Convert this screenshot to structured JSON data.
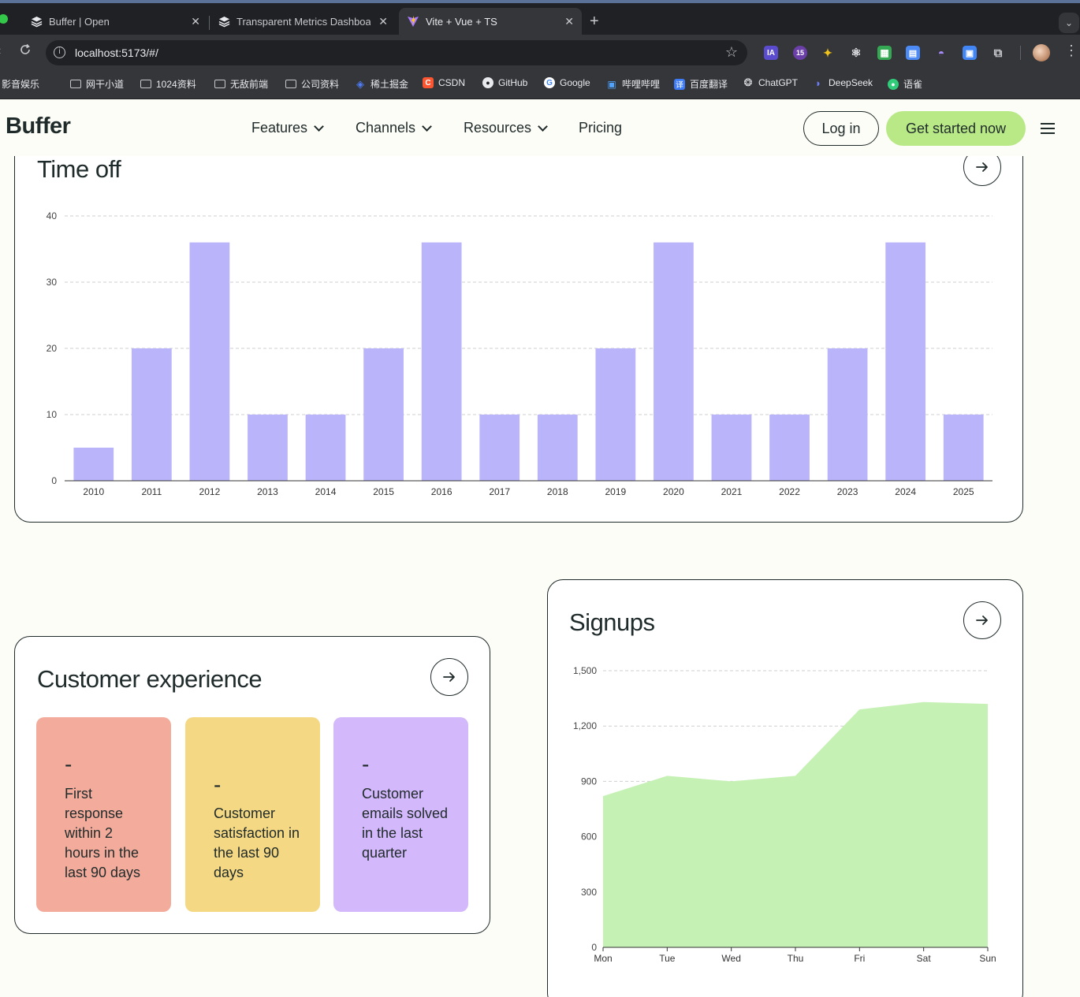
{
  "browser": {
    "tabs": [
      {
        "label": "Buffer | Open",
        "icon": "buffer-icon"
      },
      {
        "label": "Transparent Metrics Dashboa",
        "icon": "buffer-icon"
      },
      {
        "label": "Vite + Vue + TS",
        "icon": "vite-icon"
      }
    ],
    "url": "localhost:5173/#/",
    "extensions": [
      "IA",
      "15"
    ],
    "bookmarks": [
      "影音娱乐",
      "网干小道",
      "1024资料",
      "无敌前端",
      "公司资料",
      "稀土掘金",
      "CSDN",
      "GitHub",
      "Google",
      "哔哩哔哩",
      "百度翻译",
      "ChatGPT",
      "DeepSeek",
      "语雀"
    ]
  },
  "header": {
    "logo": "Buffer",
    "nav": [
      "Features",
      "Channels",
      "Resources",
      "Pricing"
    ],
    "login": "Log in",
    "cta": "Get started now"
  },
  "time_off": {
    "title": "Time off"
  },
  "customer_experience": {
    "title": "Customer experience",
    "tiles": [
      {
        "value": "-",
        "label": "First response within 2 hours in the last 90 days",
        "color": "#f3ac9c"
      },
      {
        "value": "-",
        "label": "Customer satisfaction in the last 90 days",
        "color": "#f5d883"
      },
      {
        "value": "-",
        "label": "Customer emails solved in the last quarter",
        "color": "#d3b8fb"
      }
    ]
  },
  "signups": {
    "title": "Signups"
  },
  "chart_data": [
    {
      "id": "time_off",
      "type": "bar",
      "categories": [
        "2010",
        "2011",
        "2012",
        "2013",
        "2014",
        "2015",
        "2016",
        "2017",
        "2018",
        "2019",
        "2020",
        "2021",
        "2022",
        "2023",
        "2024",
        "2025"
      ],
      "values": [
        5,
        20,
        36,
        10,
        10,
        20,
        36,
        10,
        10,
        20,
        36,
        10,
        10,
        20,
        36,
        10
      ],
      "ylim": [
        0,
        40
      ],
      "yticks": [
        "0",
        "10",
        "20",
        "30",
        "40"
      ],
      "grid": true,
      "color": "#bab4fa"
    },
    {
      "id": "signups",
      "type": "area",
      "categories": [
        "Mon",
        "Tue",
        "Wed",
        "Thu",
        "Fri",
        "Sat",
        "Sun"
      ],
      "values": [
        820,
        930,
        900,
        930,
        1290,
        1330,
        1320
      ],
      "ylim": [
        0,
        1500
      ],
      "yticks": [
        "0",
        "300",
        "600",
        "900",
        "1,200",
        "1,500"
      ],
      "grid": true,
      "color": "#c6f1b4"
    }
  ]
}
